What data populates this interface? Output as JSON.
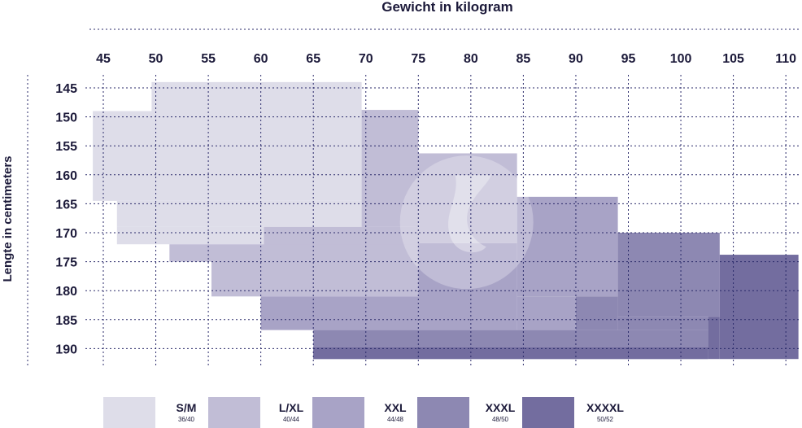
{
  "chart_data": {
    "type": "heatmap",
    "title": "",
    "xlabel": "Gewicht in kilogram",
    "ylabel": "Lengte in centimeters",
    "x_ticks": [
      45,
      50,
      55,
      60,
      65,
      70,
      75,
      80,
      85,
      90,
      95,
      100,
      105,
      110
    ],
    "y_ticks": [
      145,
      150,
      155,
      160,
      165,
      170,
      175,
      180,
      185,
      190
    ],
    "colors": {
      "S/M": "#dedde9",
      "L/XL": "#c1bdd6",
      "XXL": "#a8a3c6",
      "XXXL": "#8d88b2",
      "XXXXL": "#736d9f",
      "grid": "#2a2a6a",
      "text": "#1c1a3a"
    },
    "size_regions": [
      {
        "size": "S/M",
        "rects": [
          {
            "w0": 49.6,
            "w1": 69.6,
            "h0": 144,
            "h1": 149
          },
          {
            "w0": 44,
            "w1": 69.6,
            "h0": 149,
            "h1": 164.5
          },
          {
            "w0": 46.3,
            "w1": 69.6,
            "h0": 164.5,
            "h1": 169
          },
          {
            "w0": 46.3,
            "w1": 60.3,
            "h0": 169,
            "h1": 172
          }
        ]
      },
      {
        "size": "L/XL",
        "rects": [
          {
            "w0": 69.6,
            "w1": 75,
            "h0": 148.8,
            "h1": 169
          },
          {
            "w0": 60.3,
            "w1": 75,
            "h0": 169,
            "h1": 173.5
          },
          {
            "w0": 51.3,
            "w1": 75,
            "h0": 172,
            "h1": 175
          },
          {
            "w0": 55.3,
            "w1": 75,
            "h0": 175,
            "h1": 181
          },
          {
            "w0": 75,
            "w1": 84.4,
            "h0": 156.3,
            "h1": 171.8
          }
        ]
      },
      {
        "size": "XXL",
        "rects": [
          {
            "w0": 75,
            "w1": 84.4,
            "h0": 171.8,
            "h1": 186.8
          },
          {
            "w0": 84.4,
            "w1": 94,
            "h0": 163.8,
            "h1": 181
          },
          {
            "w0": 60,
            "w1": 75,
            "h0": 181,
            "h1": 186.8
          },
          {
            "w0": 84.4,
            "w1": 90,
            "h0": 181,
            "h1": 186.8
          }
        ]
      },
      {
        "size": "XXXL",
        "rects": [
          {
            "w0": 94,
            "w1": 103.7,
            "h0": 170,
            "h1": 184.5
          },
          {
            "w0": 90,
            "w1": 94,
            "h0": 181,
            "h1": 186.8
          },
          {
            "w0": 65,
            "w1": 102.6,
            "h0": 186.8,
            "h1": 191.8
          },
          {
            "w0": 94,
            "w1": 102.6,
            "h0": 184.5,
            "h1": 186.8
          }
        ]
      },
      {
        "size": "XXXXL",
        "rects": [
          {
            "w0": 103.7,
            "w1": 111.2,
            "h0": 173.8,
            "h1": 191.8
          },
          {
            "w0": 102.6,
            "w1": 103.7,
            "h0": 184.5,
            "h1": 191.8
          },
          {
            "w0": 65,
            "w1": 102.6,
            "h0": 189.8,
            "h1": 191.8
          }
        ]
      }
    ],
    "legend": [
      {
        "name": "S/M",
        "sub": "36/40"
      },
      {
        "name": "L/XL",
        "sub": "40/44"
      },
      {
        "name": "XXL",
        "sub": "44/48"
      },
      {
        "name": "XXXL",
        "sub": "48/50"
      },
      {
        "name": "XXXXL",
        "sub": "50/52"
      }
    ]
  }
}
